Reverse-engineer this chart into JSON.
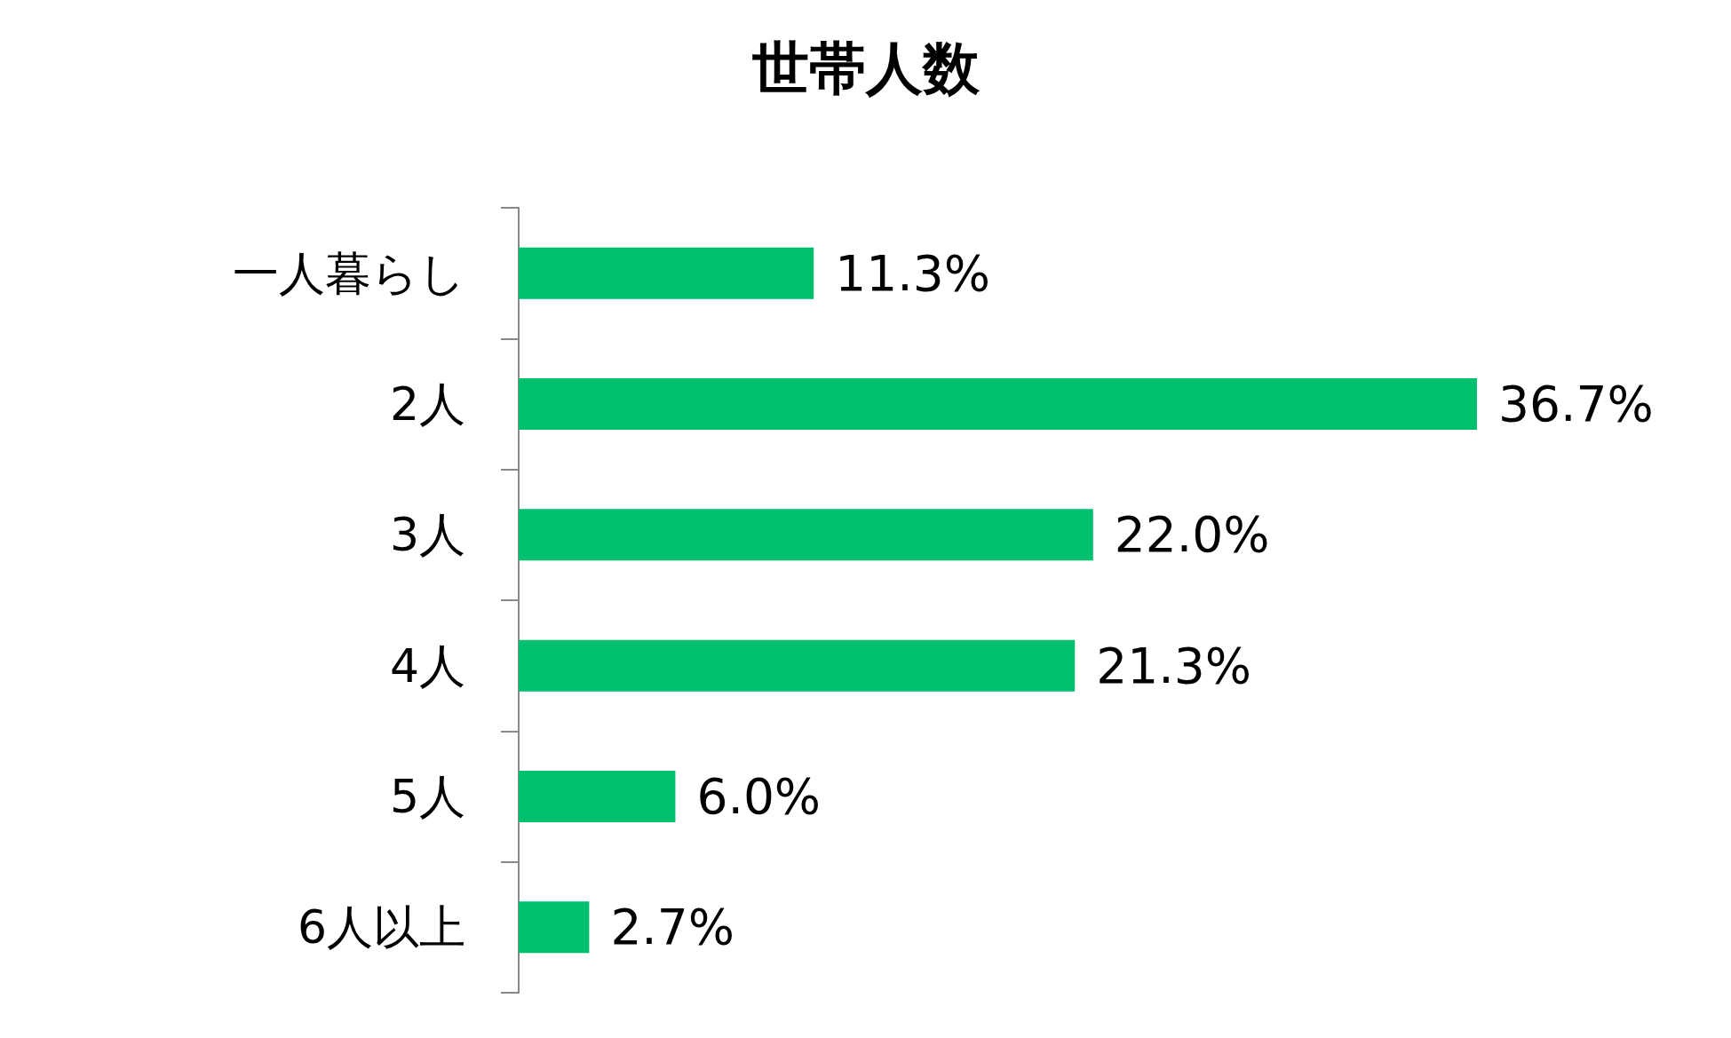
{
  "chart_data": {
    "type": "bar",
    "orientation": "horizontal",
    "title": "世帯人数",
    "categories": [
      "一人暮らし",
      "2人",
      "3人",
      "4人",
      "5人",
      "6人以上"
    ],
    "values": [
      11.3,
      36.7,
      22.0,
      21.3,
      6.0,
      2.7
    ],
    "value_labels": [
      "11.3%",
      "36.7%",
      "22.0%",
      "21.3%",
      "6.0%",
      "2.7%"
    ],
    "color": "#00bf6f",
    "tick_labels": "y"
  }
}
